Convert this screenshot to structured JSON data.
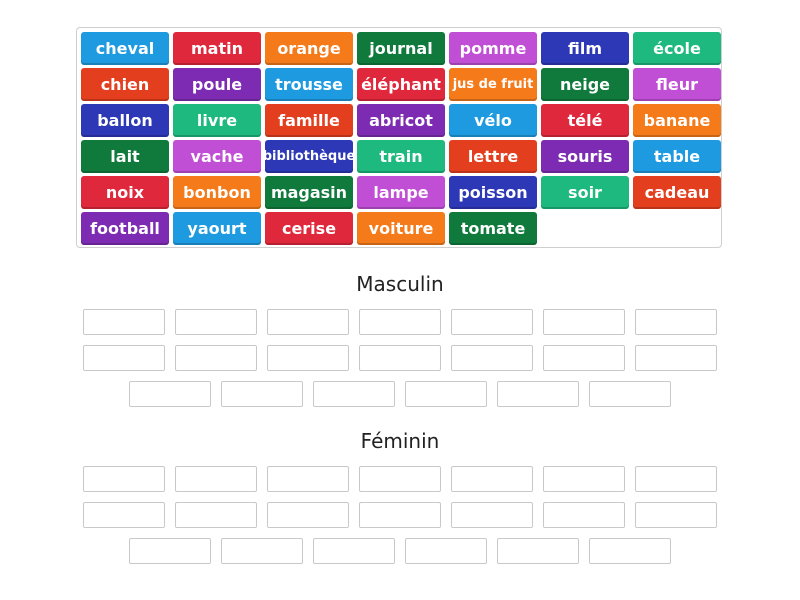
{
  "tiles": [
    {
      "label": "cheval",
      "color": "#1e9be0"
    },
    {
      "label": "matin",
      "color": "#e0283c"
    },
    {
      "label": "orange",
      "color": "#f47a1a"
    },
    {
      "label": "journal",
      "color": "#0f7a3c"
    },
    {
      "label": "pomme",
      "color": "#c04fd6"
    },
    {
      "label": "film",
      "color": "#2c38b6"
    },
    {
      "label": "école",
      "color": "#1db97f"
    },
    {
      "label": "chien",
      "color": "#e33f1f"
    },
    {
      "label": "poule",
      "color": "#7d2bb3"
    },
    {
      "label": "trousse",
      "color": "#1e9be0"
    },
    {
      "label": "éléphant",
      "color": "#e0283c"
    },
    {
      "label": "jus de fruit",
      "color": "#f47a1a"
    },
    {
      "label": "neige",
      "color": "#0f7a3c"
    },
    {
      "label": "fleur",
      "color": "#c04fd6"
    },
    {
      "label": "ballon",
      "color": "#2c38b6"
    },
    {
      "label": "livre",
      "color": "#1db97f"
    },
    {
      "label": "famille",
      "color": "#e33f1f"
    },
    {
      "label": "abricot",
      "color": "#7d2bb3"
    },
    {
      "label": "vélo",
      "color": "#1e9be0"
    },
    {
      "label": "télé",
      "color": "#e0283c"
    },
    {
      "label": "banane",
      "color": "#f47a1a"
    },
    {
      "label": "lait",
      "color": "#0f7a3c"
    },
    {
      "label": "vache",
      "color": "#c04fd6"
    },
    {
      "label": "bibliothèque",
      "color": "#2c38b6"
    },
    {
      "label": "train",
      "color": "#1db97f"
    },
    {
      "label": "lettre",
      "color": "#e33f1f"
    },
    {
      "label": "souris",
      "color": "#7d2bb3"
    },
    {
      "label": "table",
      "color": "#1e9be0"
    },
    {
      "label": "noix",
      "color": "#e0283c"
    },
    {
      "label": "bonbon",
      "color": "#f47a1a"
    },
    {
      "label": "magasin",
      "color": "#0f7a3c"
    },
    {
      "label": "lampe",
      "color": "#c04fd6"
    },
    {
      "label": "poisson",
      "color": "#2c38b6"
    },
    {
      "label": "soir",
      "color": "#1db97f"
    },
    {
      "label": "cadeau",
      "color": "#e33f1f"
    },
    {
      "label": "football",
      "color": "#7d2bb3"
    },
    {
      "label": "yaourt",
      "color": "#1e9be0"
    },
    {
      "label": "cerise",
      "color": "#e0283c"
    },
    {
      "label": "voiture",
      "color": "#f47a1a"
    },
    {
      "label": "tomate",
      "color": "#0f7a3c"
    }
  ],
  "groups": [
    {
      "title": "Masculin"
    },
    {
      "title": "Féminin"
    }
  ]
}
